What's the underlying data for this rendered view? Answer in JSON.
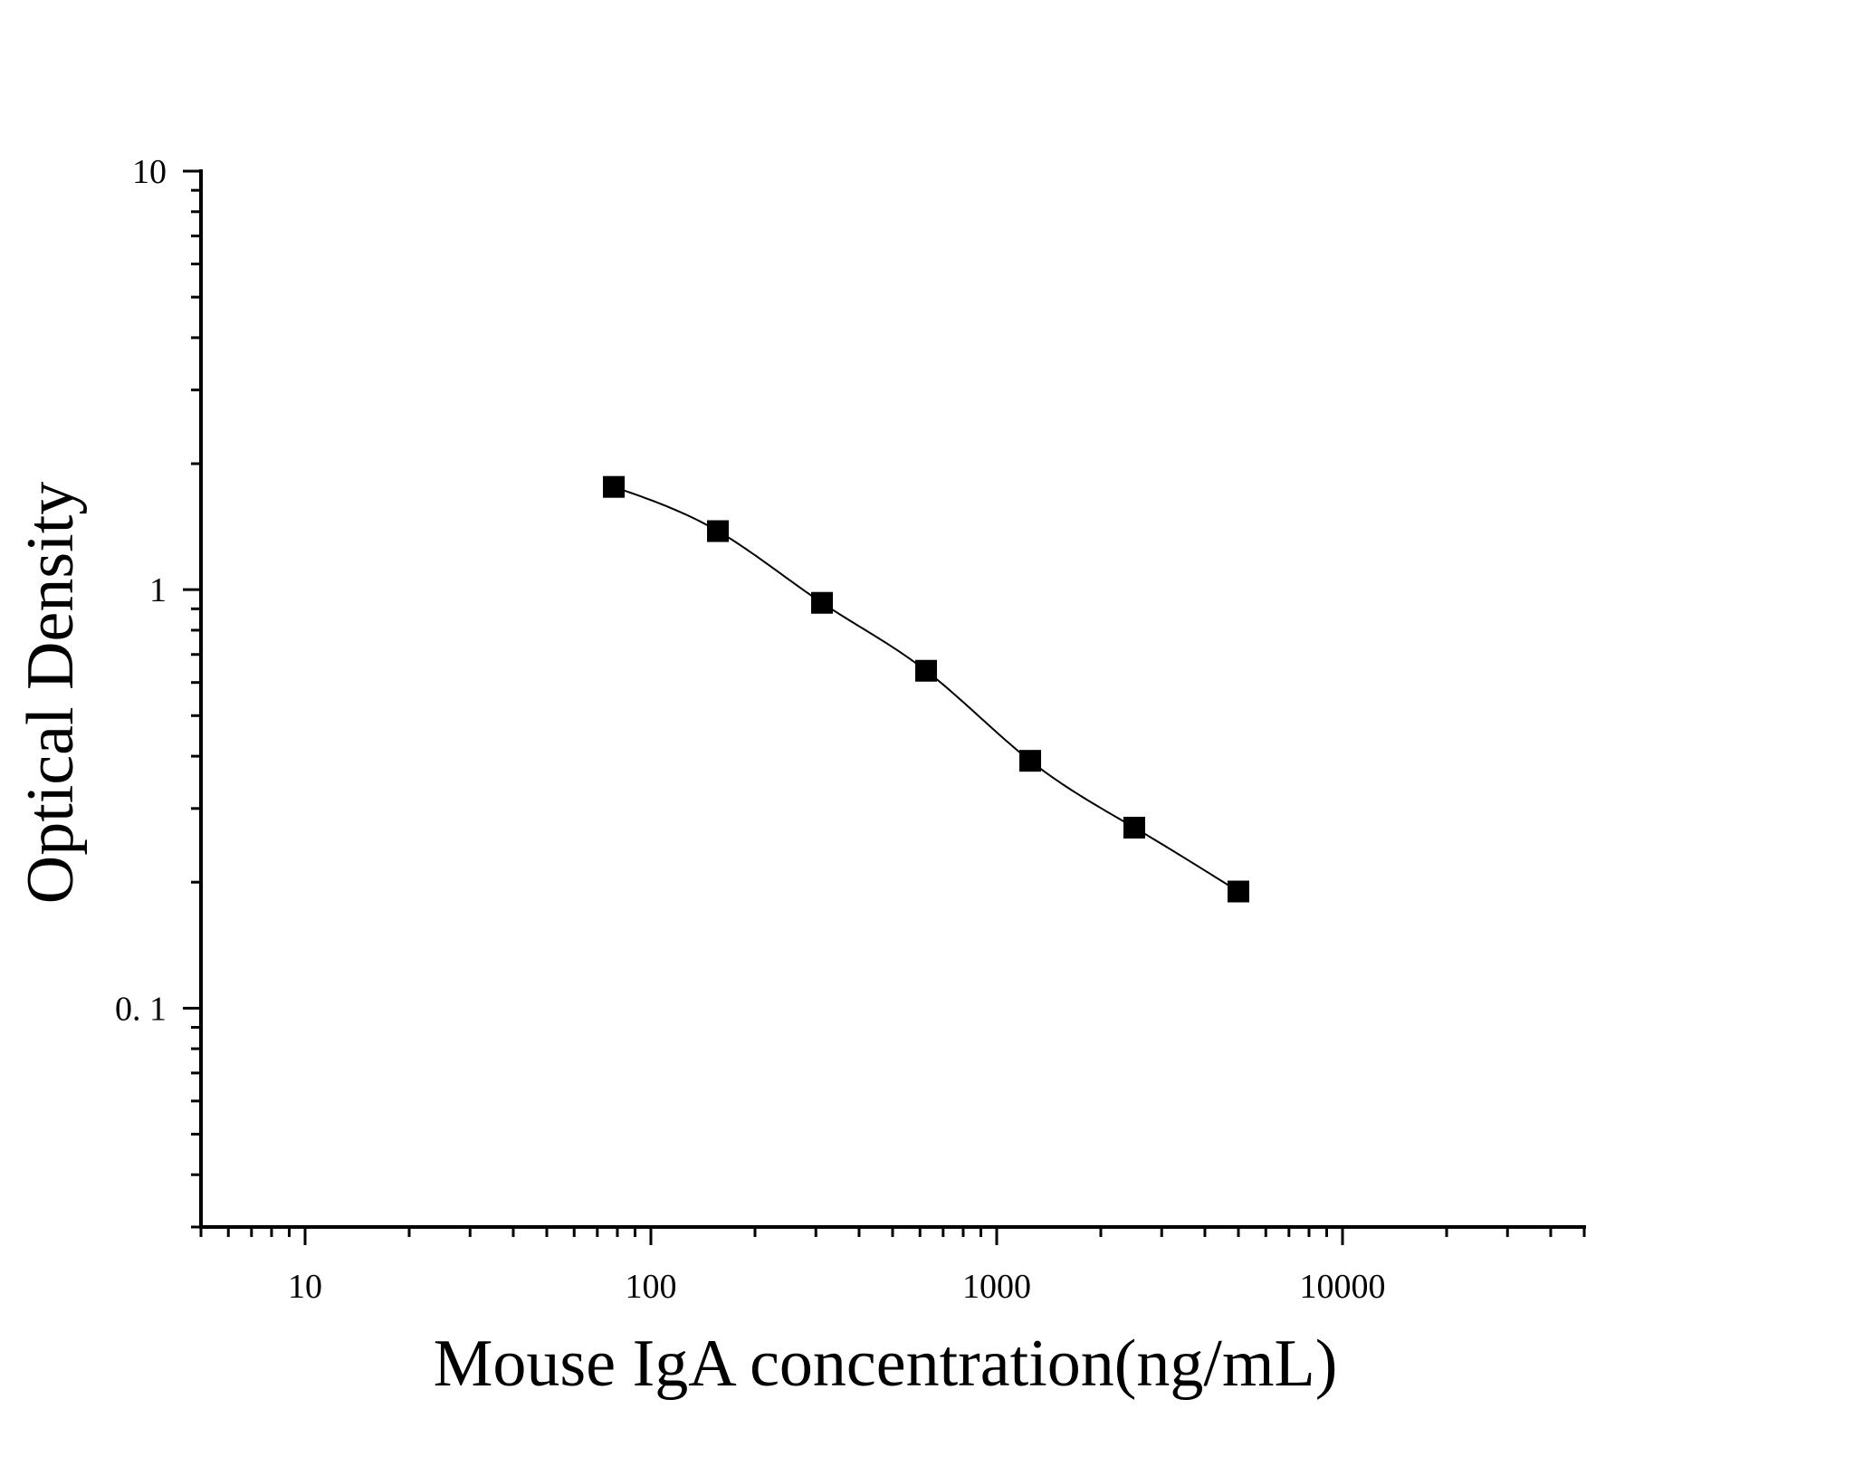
{
  "chart_data": {
    "type": "scatter",
    "title": "",
    "xlabel": "Mouse IgA concentration(ng/mL)",
    "ylabel": "Optical Density",
    "x_scale": "log",
    "y_scale": "log",
    "xlim": [
      5,
      50000
    ],
    "ylim": [
      0.03,
      10
    ],
    "x_tick_labels": [
      {
        "value": 10,
        "label": "10"
      },
      {
        "value": 100,
        "label": "100"
      },
      {
        "value": 1000,
        "label": "1000"
      },
      {
        "value": 10000,
        "label": "10000"
      }
    ],
    "y_tick_labels": [
      {
        "value": 10,
        "label": "10"
      },
      {
        "value": 1,
        "label": "1"
      },
      {
        "value": 0.1,
        "label": "0. 1"
      }
    ],
    "grid": false,
    "legend": "none",
    "marker": "square",
    "color": "#000000",
    "series": [
      {
        "x": [
          78.125,
          156.25,
          312.5,
          625,
          1250,
          2500,
          5000
        ],
        "y": [
          1.76,
          1.38,
          0.93,
          0.64,
          0.39,
          0.27,
          0.19
        ],
        "fit_curve": true
      }
    ]
  }
}
